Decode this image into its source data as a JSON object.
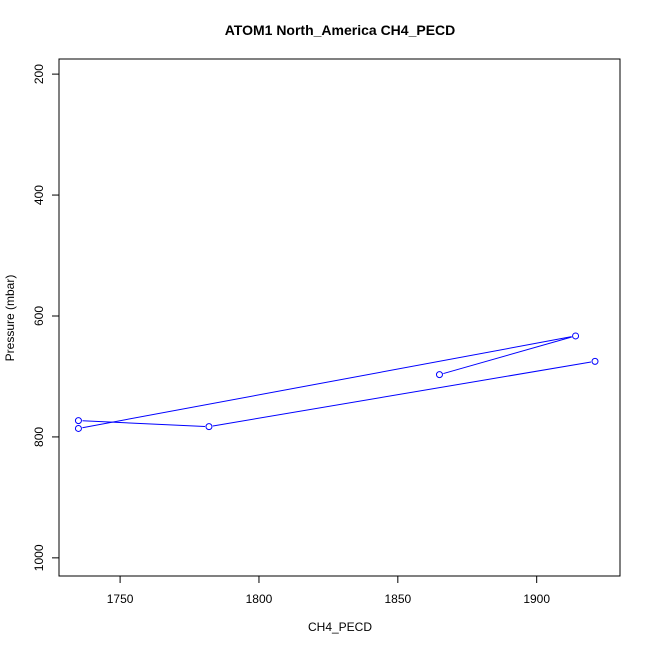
{
  "chart_data": {
    "type": "line",
    "title": "ATOM1 North_America CH4_PECD",
    "xlabel": "CH4_PECD",
    "ylabel": "Pressure (mbar)",
    "xlim": [
      1728,
      1930
    ],
    "ylim": [
      1030,
      175
    ],
    "y_reversed": true,
    "x_ticks": [
      1750,
      1800,
      1850,
      1900
    ],
    "y_ticks": [
      200,
      400,
      600,
      800,
      1000
    ],
    "x_tick_labels": [
      "1750",
      "1800",
      "1850",
      "1900"
    ],
    "y_tick_labels": [
      "200",
      "400",
      "600",
      "800",
      "1000"
    ],
    "grid": false,
    "series": [
      {
        "color": "#0000ff",
        "marker": "open-circle",
        "x": [
          1865,
          1914,
          1735,
          1735,
          1782,
          1921
        ],
        "y": [
          697,
          633,
          786,
          773,
          783,
          675
        ]
      }
    ]
  }
}
